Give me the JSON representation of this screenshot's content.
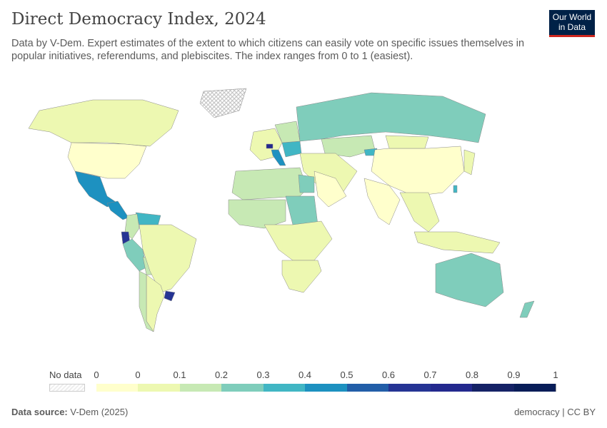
{
  "header": {
    "title": "Direct Democracy Index, 2024",
    "subtitle": "Data by V-Dem. Expert estimates of the extent to which citizens can easily vote on specific issues themselves in popular initiatives, referendums, and plebiscites. The index ranges from 0 to 1 (easiest).",
    "logo": "Our World in Data"
  },
  "legend": {
    "no_data_label": "No data",
    "ticks": [
      "0",
      "0",
      "0.1",
      "0.2",
      "0.3",
      "0.4",
      "0.5",
      "0.6",
      "0.7",
      "0.8",
      "0.9",
      "1"
    ],
    "colors": [
      "#ffffcc",
      "#edf8b1",
      "#c7e9b4",
      "#7fcdbb",
      "#41b6c4",
      "#1d91c0",
      "#225ea8",
      "#253494",
      "#23298e",
      "#152266",
      "#081d58"
    ]
  },
  "footer": {
    "source_label": "Data source:",
    "source": "V-Dem (2025)",
    "license": "democracy | CC BY"
  },
  "chart_data": {
    "type": "choropleth",
    "title": "Direct Democracy Index, 2024",
    "range": [
      0,
      1
    ],
    "regions": [
      {
        "name": "Canada",
        "bin": 1
      },
      {
        "name": "United States",
        "bin": 0
      },
      {
        "name": "Mexico",
        "bin": 5
      },
      {
        "name": "Central America",
        "bin": 5
      },
      {
        "name": "Venezuela",
        "bin": 4
      },
      {
        "name": "Colombia",
        "bin": 2
      },
      {
        "name": "Ecuador",
        "bin": 7
      },
      {
        "name": "Peru",
        "bin": 3
      },
      {
        "name": "Bolivia",
        "bin": 2
      },
      {
        "name": "Brazil",
        "bin": 1
      },
      {
        "name": "Argentina",
        "bin": 1
      },
      {
        "name": "Uruguay",
        "bin": 7
      },
      {
        "name": "Chile",
        "bin": 2
      },
      {
        "name": "Greenland",
        "bin": -1
      },
      {
        "name": "Western Europe",
        "bin": 1
      },
      {
        "name": "Switzerland",
        "bin": 8
      },
      {
        "name": "Italy",
        "bin": 5
      },
      {
        "name": "Balkans",
        "bin": 4
      },
      {
        "name": "Eastern Europe",
        "bin": 2
      },
      {
        "name": "Russia",
        "bin": 3
      },
      {
        "name": "Kazakhstan",
        "bin": 2
      },
      {
        "name": "Kyrgyzstan",
        "bin": 4
      },
      {
        "name": "China",
        "bin": 0
      },
      {
        "name": "Mongolia",
        "bin": 1
      },
      {
        "name": "India",
        "bin": 0
      },
      {
        "name": "Middle East",
        "bin": 1
      },
      {
        "name": "Saudi Arabia",
        "bin": 0
      },
      {
        "name": "Southeast Asia",
        "bin": 1
      },
      {
        "name": "Japan",
        "bin": 1
      },
      {
        "name": "Taiwan",
        "bin": 4
      },
      {
        "name": "North Africa",
        "bin": 2
      },
      {
        "name": "Egypt",
        "bin": 3
      },
      {
        "name": "Sudan",
        "bin": 3
      },
      {
        "name": "West Africa",
        "bin": 2
      },
      {
        "name": "Central Africa",
        "bin": 1
      },
      {
        "name": "Southern Africa",
        "bin": 1
      },
      {
        "name": "Australia",
        "bin": 3
      },
      {
        "name": "New Zealand",
        "bin": 3
      },
      {
        "name": "Indonesia",
        "bin": 1
      }
    ]
  }
}
